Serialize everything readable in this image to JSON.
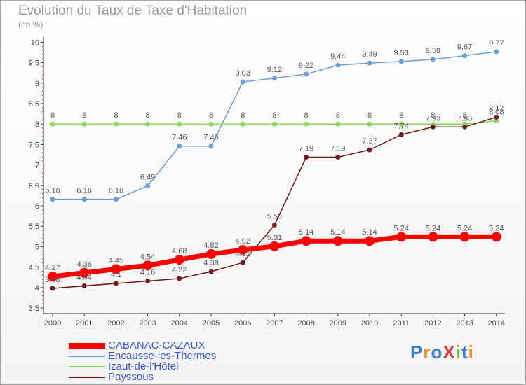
{
  "title": "Evolution du Taux de Taxe d'Habitation",
  "unit": "(en %)",
  "logo": {
    "text": "ProXiti"
  },
  "chart_data": {
    "type": "line",
    "title": "Evolution du Taux de Taxe d'Habitation",
    "ylabel": "(en %)",
    "xlabel": "",
    "x": [
      2000,
      2001,
      2002,
      2003,
      2004,
      2005,
      2006,
      2007,
      2008,
      2009,
      2010,
      2011,
      2012,
      2013,
      2014
    ],
    "ylim": [
      3.5,
      10
    ],
    "yticks": [
      3.5,
      4,
      4.5,
      5,
      5.5,
      6,
      6.5,
      7,
      7.5,
      8,
      8.5,
      9,
      9.5,
      10
    ],
    "grid": false,
    "legend_position": "bottom-left",
    "series": [
      {
        "name": "Encausse-les-Thermes",
        "color": "#6a9ed6",
        "width": 1.5,
        "marker": 3.5,
        "labels": true,
        "values": [
          6.16,
          6.16,
          6.16,
          6.49,
          7.46,
          7.46,
          9.03,
          9.12,
          9.22,
          9.44,
          9.49,
          9.53,
          9.58,
          9.67,
          9.77
        ]
      },
      {
        "name": "Izaut-de-l'Hôtel",
        "color": "#8ed658",
        "width": 1.5,
        "marker": 3.5,
        "labels": true,
        "values": [
          8,
          8,
          8,
          8,
          8,
          8,
          8,
          8,
          8,
          8,
          8,
          8,
          8,
          8,
          8.08
        ]
      },
      {
        "name": "Payssous",
        "color": "#6e1a1a",
        "width": 1.5,
        "marker": 3.5,
        "labels": true,
        "values": [
          3.98,
          4.04,
          4.1,
          4.16,
          4.22,
          4.39,
          4.61,
          5.53,
          7.19,
          7.19,
          7.37,
          7.74,
          7.93,
          7.93,
          8.17
        ]
      },
      {
        "name": "CABANAC-CAZAUX",
        "color": "#ff0000",
        "width": 7,
        "marker": 7,
        "labels": true,
        "values": [
          4.27,
          4.36,
          4.45,
          4.54,
          4.68,
          4.82,
          4.92,
          5.01,
          5.14,
          5.14,
          5.14,
          5.24,
          5.24,
          5.24,
          5.24
        ]
      }
    ]
  },
  "legend": [
    {
      "name": "CABANAC-CAZAUX",
      "color": "#ff0000",
      "thickness": 8
    },
    {
      "name": "Encausse-les-Thermes",
      "color": "#6a9ed6",
      "thickness": 2
    },
    {
      "name": "Izaut-de-l'Hôtel",
      "color": "#8ed658",
      "thickness": 2
    },
    {
      "name": "Payssous",
      "color": "#6e1a1a",
      "thickness": 2
    }
  ]
}
